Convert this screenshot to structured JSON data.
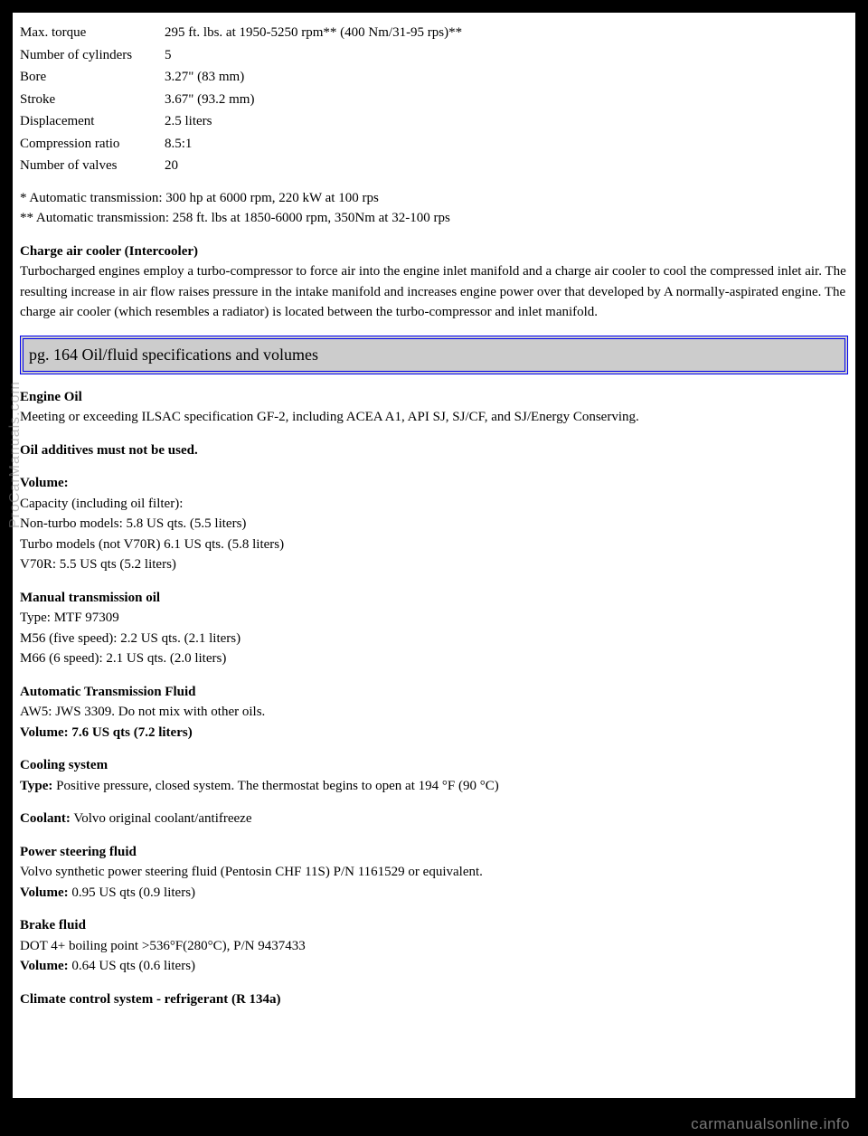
{
  "specs": {
    "rows": [
      {
        "label": "Max. torque",
        "value": "295 ft. lbs. at 1950-5250 rpm** (400 Nm/31-95 rps)**"
      },
      {
        "label": "Number of cylinders",
        "value": "5"
      },
      {
        "label": "Bore",
        "value": "3.27\" (83 mm)"
      },
      {
        "label": "Stroke",
        "value": "3.67\" (93.2 mm)"
      },
      {
        "label": "Displacement",
        "value": "2.5 liters"
      },
      {
        "label": "Compression ratio",
        "value": "8.5:1"
      },
      {
        "label": "Number of valves",
        "value": "20"
      }
    ]
  },
  "footnotes": {
    "line1": "* Automatic transmission: 300 hp at 6000 rpm, 220 kW at 100 rps",
    "line2": "** Automatic transmission: 258 ft. lbs at 1850-6000 rpm, 350Nm at 32-100 rps"
  },
  "intercooler": {
    "title": "Charge air cooler (Intercooler)",
    "body": "Turbocharged engines employ a turbo-compressor to force air into the engine inlet manifold and a charge air cooler to cool the compressed inlet air. The resulting increase in air flow raises pressure in the intake manifold and increases engine power over that developed by A normally-aspirated engine. The charge air cooler (which resembles a radiator) is located between the turbo-compressor and inlet manifold."
  },
  "heading": "pg. 164 Oil/fluid specifications and volumes",
  "engine_oil": {
    "title": "Engine Oil",
    "body": "Meeting or exceeding ILSAC specification GF-2, including ACEA A1, API SJ, SJ/CF, and SJ/Energy Conserving.",
    "additives": "Oil additives must not be used.",
    "volume_title": "Volume:",
    "volume_lines": [
      "Capacity (including oil filter):",
      "Non-turbo models: 5.8 US qts. (5.5 liters)",
      "Turbo models (not V70R) 6.1 US qts. (5.8 liters)",
      "V70R: 5.5 US qts (5.2 liters)"
    ]
  },
  "manual_trans": {
    "title": "Manual transmission oil",
    "lines": [
      "Type: MTF 97309",
      "M56 (five speed): 2.2 US qts. (2.1 liters)",
      "M66 (6 speed): 2.1 US qts. (2.0 liters)"
    ]
  },
  "auto_trans": {
    "title": "Automatic Transmission Fluid",
    "body": "AW5: JWS 3309. Do not mix with other oils.",
    "volume": "Volume: 7.6 US qts (7.2 liters)"
  },
  "cooling": {
    "title": "Cooling system",
    "type_label": "Type:",
    "type_value": " Positive pressure, closed system. The thermostat begins to open at 194 °F (90 °C)",
    "coolant_label": "Coolant:",
    "coolant_value": " Volvo original coolant/antifreeze"
  },
  "power_steering": {
    "title": "Power steering fluid",
    "body": "Volvo synthetic power steering fluid (Pentosin CHF 11S) P/N 1161529 or equivalent.",
    "volume_label": "Volume:",
    "volume_value": " 0.95 US qts (0.9 liters)"
  },
  "brake": {
    "title": "Brake fluid",
    "body": "DOT 4+ boiling point >536°F(280°C), P/N 9437433",
    "volume_label": "Volume:",
    "volume_value": " 0.64 US qts (0.6 liters)"
  },
  "climate": {
    "title": "Climate control system - refrigerant (R 134a)"
  },
  "watermarks": {
    "side": "ProCarManuals.com",
    "footer": "carmanualsonline.info"
  }
}
